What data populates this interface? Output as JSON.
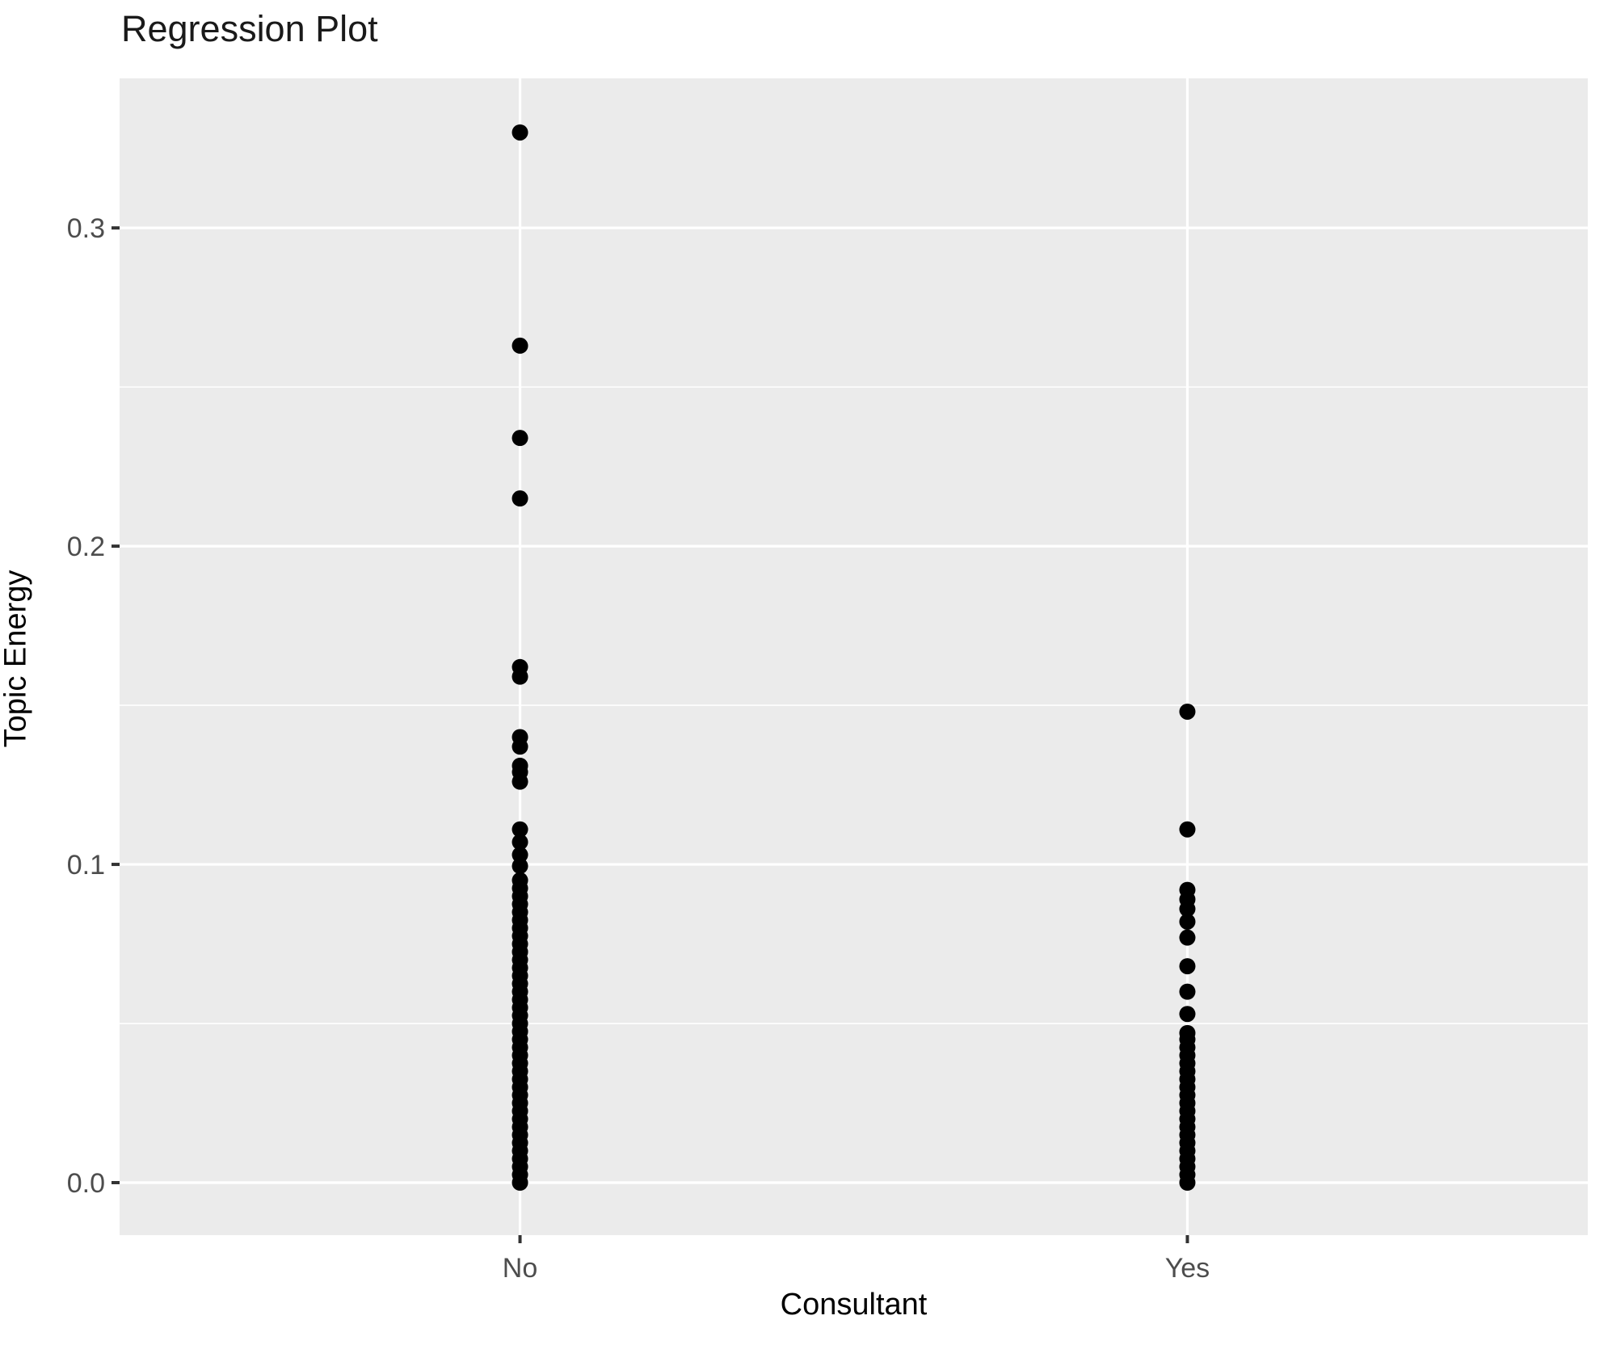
{
  "title": "Regression Plot",
  "chart_data": {
    "type": "scatter",
    "title": "Regression Plot",
    "xlabel": "Consultant",
    "ylabel": "Topic Energy",
    "categories": [
      "No",
      "Yes"
    ],
    "legend_position": "none",
    "grid": "major and minor horizontal white gridlines, major vertical gridlines at categories, on gray panel",
    "panel_color": "#EBEBEB",
    "gridline_color": "#FFFFFF",
    "point_color": "#000000",
    "tick_label_color": "#4D4D4D",
    "tick_mark_color": "#333333",
    "ylim": [
      -0.0165,
      0.347
    ],
    "x_expansion": [
      0.4,
      2.6
    ],
    "y_axis": {
      "major_ticks": [
        {
          "label": "0.0",
          "value": 0.0
        },
        {
          "label": "0.1",
          "value": 0.1
        },
        {
          "label": "0.2",
          "value": 0.2
        },
        {
          "label": "0.3",
          "value": 0.3
        }
      ],
      "minor_gridlines": [
        0.05,
        0.15,
        0.25
      ]
    },
    "series": [
      {
        "name": "No",
        "values": [
          0,
          0.0025,
          0.005,
          0.0075,
          0.01,
          0.0125,
          0.015,
          0.0175,
          0.02,
          0.0225,
          0.025,
          0.0275,
          0.03,
          0.0325,
          0.035,
          0.0375,
          0.04,
          0.0425,
          0.045,
          0.0475,
          0.05,
          0.0525,
          0.055,
          0.0575,
          0.06,
          0.0625,
          0.065,
          0.0675,
          0.07,
          0.0725,
          0.075,
          0.0775,
          0.08,
          0.0825,
          0.085,
          0.0875,
          0.09,
          0.0925,
          0.095,
          0.0995,
          0.103,
          0.107,
          0.111,
          0.126,
          0.129,
          0.131,
          0.137,
          0.14,
          0.159,
          0.162,
          0.215,
          0.234,
          0.263,
          0.33
        ]
      },
      {
        "name": "Yes",
        "values": [
          0,
          0.0025,
          0.005,
          0.0075,
          0.01,
          0.0125,
          0.015,
          0.0175,
          0.02,
          0.0225,
          0.025,
          0.0275,
          0.03,
          0.0325,
          0.035,
          0.0375,
          0.04,
          0.0425,
          0.045,
          0.047,
          0.053,
          0.06,
          0.068,
          0.077,
          0.082,
          0.086,
          0.089,
          0.092,
          0.111,
          0.148
        ]
      }
    ]
  }
}
